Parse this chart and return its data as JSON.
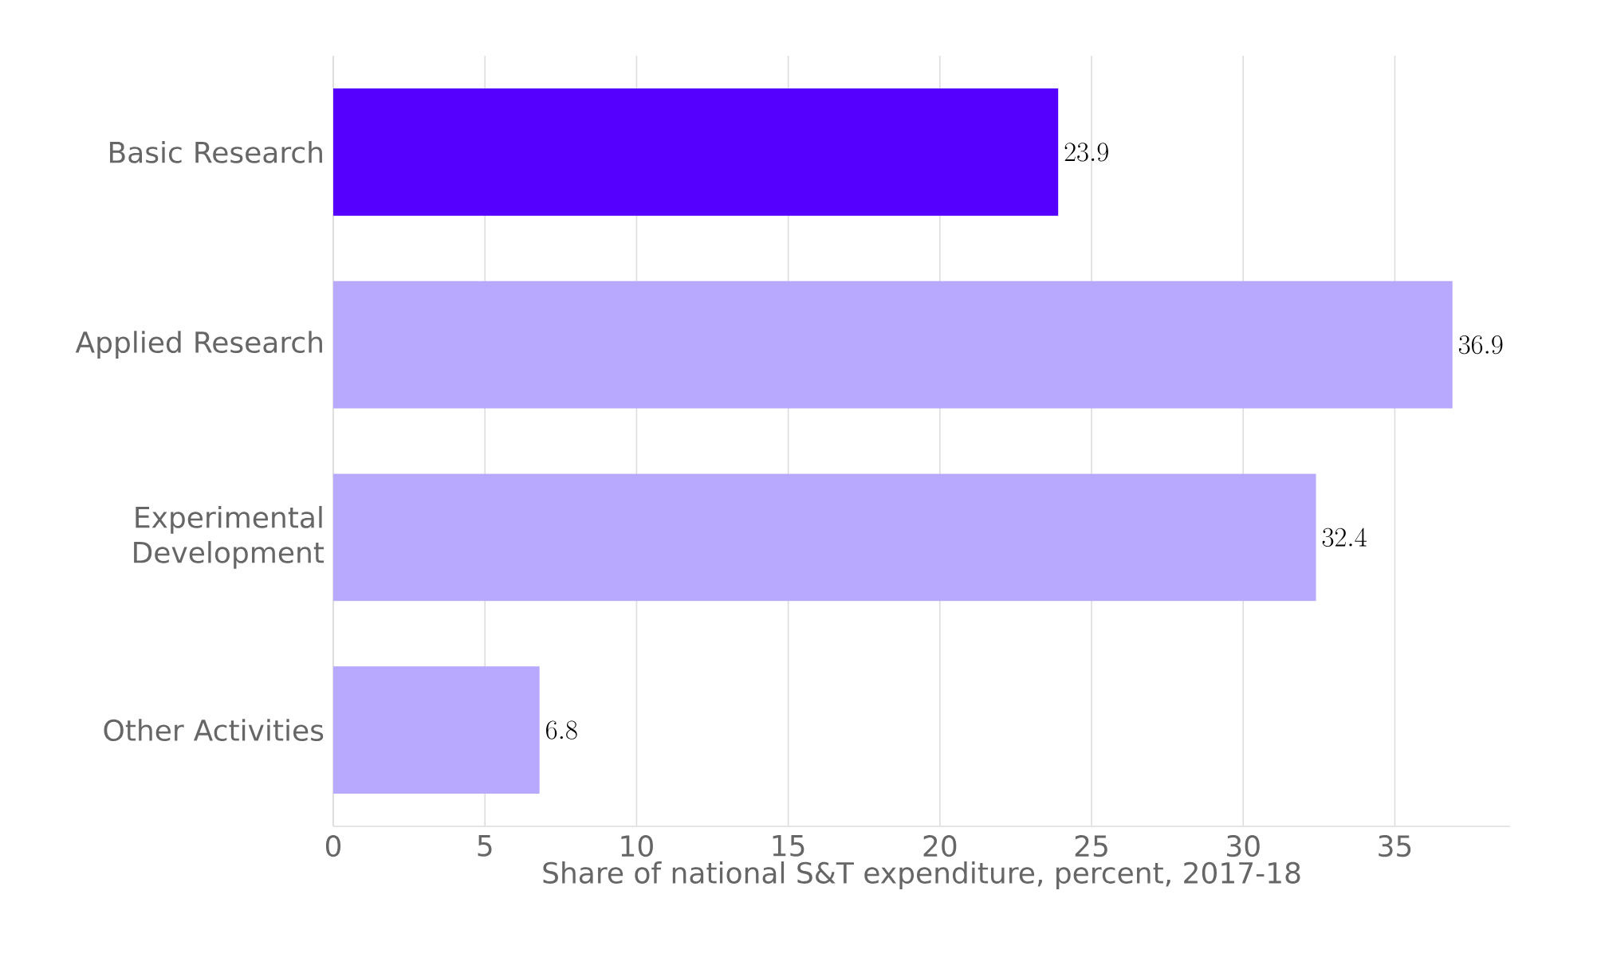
{
  "chart_data": {
    "type": "bar",
    "orientation": "horizontal",
    "xlabel": "Share of national S&T expenditure, percent, 2017-18",
    "categories": [
      "Basic Research",
      "Applied Research",
      "Experimental Development",
      "Other Activities"
    ],
    "values": [
      23.9,
      36.9,
      32.4,
      6.8
    ],
    "colors": [
      "#5500ff",
      "#b8a9ff",
      "#b8a9ff",
      "#b8a9ff"
    ],
    "xlim": [
      0,
      38.8
    ],
    "xticks": [
      0,
      5,
      10,
      15,
      20,
      25,
      30,
      35
    ],
    "grid": "x",
    "data_labels": true
  }
}
